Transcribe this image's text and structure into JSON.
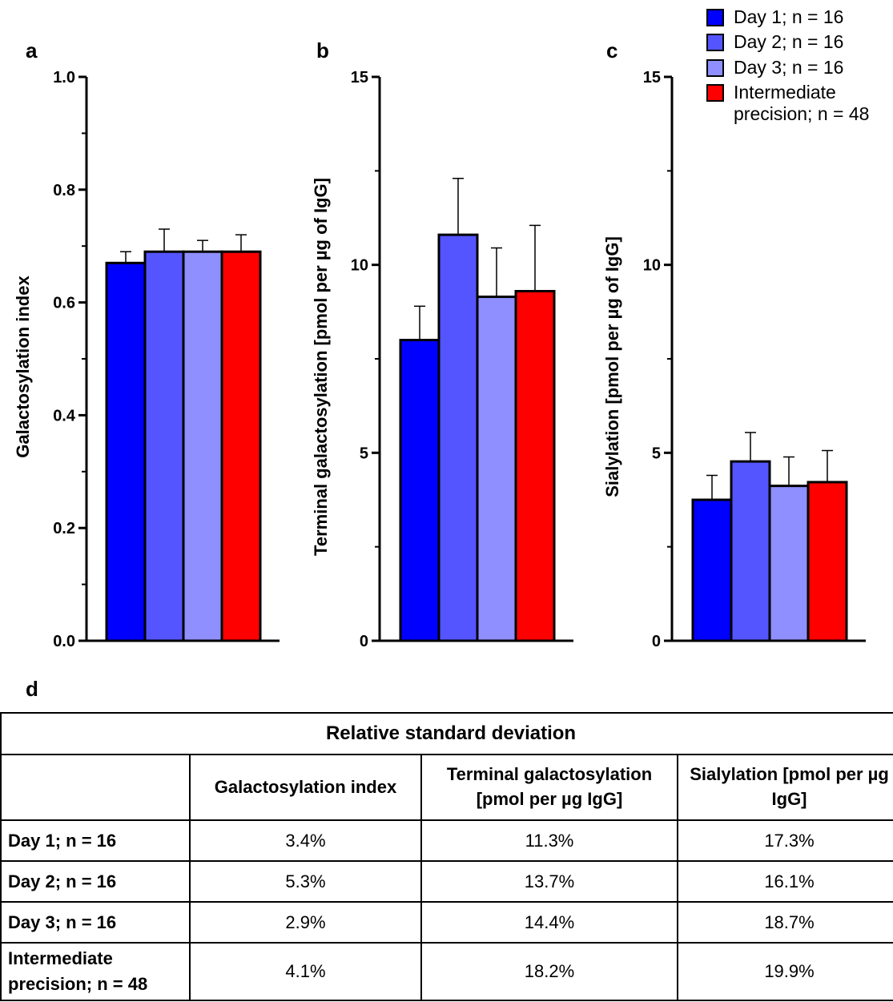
{
  "panel_letters": {
    "a": "a",
    "b": "b",
    "c": "c",
    "d": "d"
  },
  "colors": {
    "day1": "#0000ff",
    "day2": "#5555ff",
    "day3": "#8f8fff",
    "intermediate": "#ff0000"
  },
  "legend": [
    {
      "label": "Day 1; n = 16",
      "color": "#0000ff"
    },
    {
      "label": "Day 2; n = 16",
      "color": "#5555ff"
    },
    {
      "label": "Day 3; n = 16",
      "color": "#8f8fff"
    },
    {
      "label": "Intermediate precision; n = 48",
      "color": "#ff0000"
    }
  ],
  "chart_data": [
    {
      "type": "bar",
      "panel": "a",
      "ylabel": "Galactosylation index",
      "ylim": [
        0,
        1.0
      ],
      "yticks": [
        0.0,
        0.2,
        0.4,
        0.6,
        0.8,
        1.0
      ],
      "ytick_labels": [
        "0.0",
        "0.2",
        "0.4",
        "0.6",
        "0.8",
        "1.0"
      ],
      "series": [
        {
          "name": "Day 1; n = 16",
          "value": 0.67,
          "error": 0.02
        },
        {
          "name": "Day 2; n = 16",
          "value": 0.69,
          "error": 0.04
        },
        {
          "name": "Day 3; n = 16",
          "value": 0.69,
          "error": 0.02
        },
        {
          "name": "Intermediate precision; n = 48",
          "value": 0.69,
          "error": 0.03
        }
      ]
    },
    {
      "type": "bar",
      "panel": "b",
      "ylabel": "Terminal galactosylation [pmol per µg of IgG]",
      "ylim": [
        0,
        15
      ],
      "yticks": [
        0,
        5,
        10,
        15
      ],
      "ytick_labels": [
        "0",
        "5",
        "10",
        "15"
      ],
      "series": [
        {
          "name": "Day 1; n = 16",
          "value": 8.0,
          "error": 0.9
        },
        {
          "name": "Day 2; n = 16",
          "value": 10.8,
          "error": 1.5
        },
        {
          "name": "Day 3; n = 16",
          "value": 9.15,
          "error": 1.3
        },
        {
          "name": "Intermediate precision; n = 48",
          "value": 9.3,
          "error": 1.75
        }
      ]
    },
    {
      "type": "bar",
      "panel": "c",
      "ylabel": "Sialylation [pmol per µg of IgG]",
      "ylim": [
        0,
        15
      ],
      "yticks": [
        0,
        5,
        10,
        15
      ],
      "ytick_labels": [
        "0",
        "5",
        "10",
        "15"
      ],
      "series": [
        {
          "name": "Day 1; n = 16",
          "value": 3.75,
          "error": 0.65
        },
        {
          "name": "Day 2; n = 16",
          "value": 4.77,
          "error": 0.77
        },
        {
          "name": "Day 3; n = 16",
          "value": 4.12,
          "error": 0.77
        },
        {
          "name": "Intermediate precision; n = 48",
          "value": 4.22,
          "error": 0.84
        }
      ]
    }
  ],
  "table": {
    "title": "Relative standard deviation",
    "columns": [
      "Galactosylation index",
      "Terminal galactosylation [pmol per µg IgG]",
      "Sialylation [pmol per µg IgG]"
    ],
    "rows": [
      {
        "label": "Day 1; n = 16",
        "values": [
          "3.4%",
          "11.3%",
          "17.3%"
        ]
      },
      {
        "label": "Day 2; n = 16",
        "values": [
          "5.3%",
          "13.7%",
          "16.1%"
        ]
      },
      {
        "label": "Day 3; n = 16",
        "values": [
          "2.9%",
          "14.4%",
          "18.7%"
        ]
      },
      {
        "label": "Intermediate precision; n = 48",
        "values": [
          "4.1%",
          "18.2%",
          "19.9%"
        ]
      }
    ]
  }
}
